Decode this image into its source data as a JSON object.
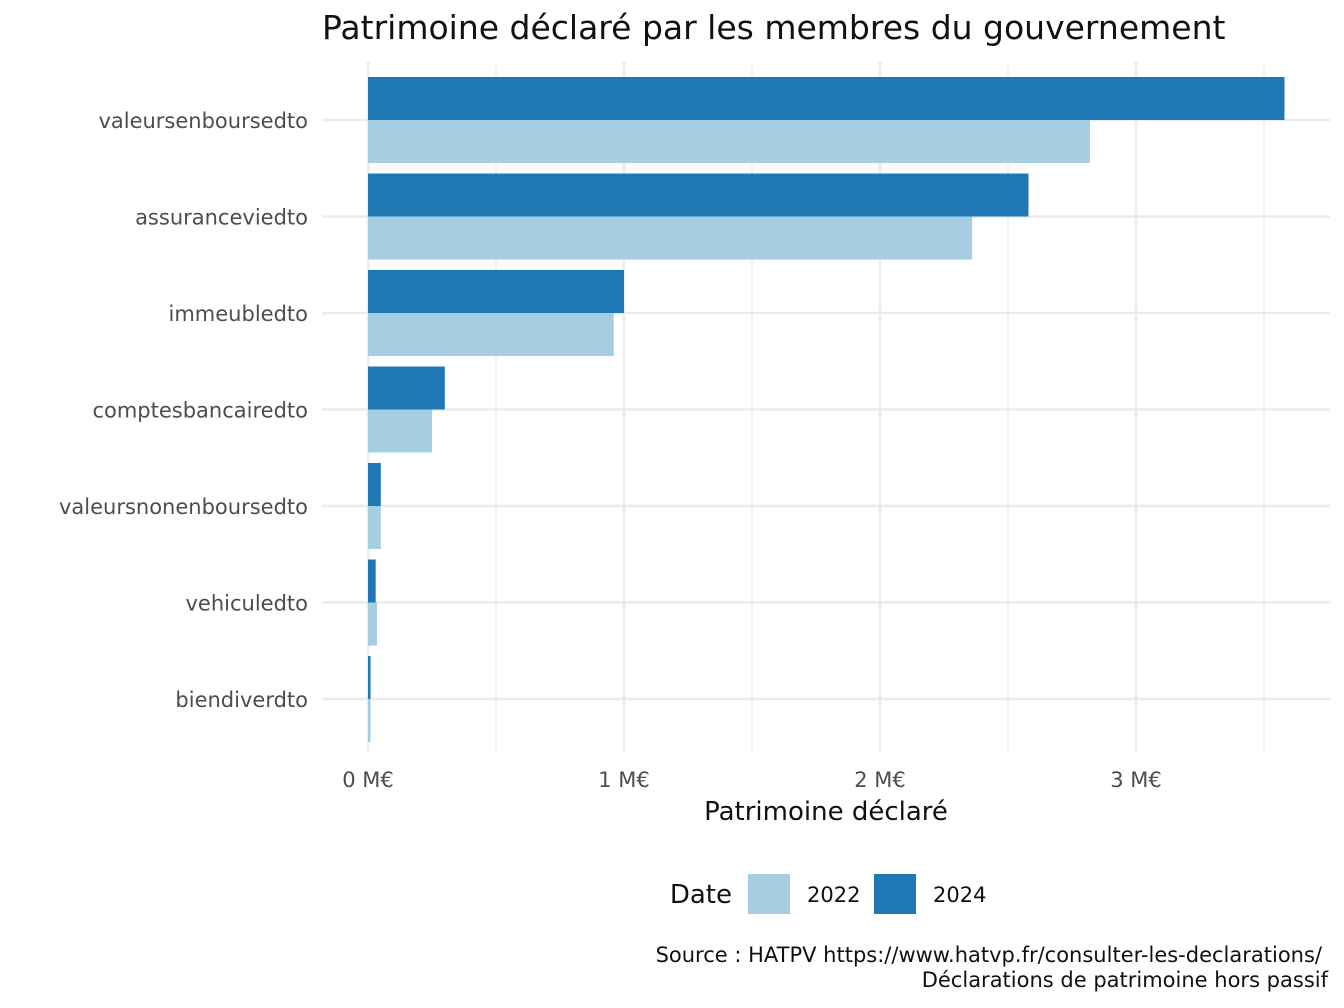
{
  "chart_data": {
    "type": "bar",
    "orientation": "horizontal",
    "title": "Patrimoine déclaré par les membres du gouvernement",
    "xlabel": "Patrimoine déclaré",
    "ylabel": "",
    "categories": [
      "valeursenboursedto",
      "assuranceviedto",
      "immeubledto",
      "comptesbancairedto",
      "valeursnonenboursedto",
      "vehiculedto",
      "biendiverdto"
    ],
    "series": [
      {
        "name": "2022",
        "color": "#a6cee3",
        "values": [
          2.82,
          2.36,
          0.96,
          0.25,
          0.05,
          0.035,
          0.01
        ]
      },
      {
        "name": "2024",
        "color": "#1f78b4",
        "values": [
          3.58,
          2.58,
          1.0,
          0.3,
          0.05,
          0.03,
          0.01
        ]
      }
    ],
    "x_unit": "M€",
    "xlim": [
      -0.18,
      3.75
    ],
    "x_ticks": [
      {
        "value": 0,
        "label": "0 M€"
      },
      {
        "value": 1,
        "label": "1 M€"
      },
      {
        "value": 2,
        "label": "2 M€"
      },
      {
        "value": 3,
        "label": "3 M€"
      }
    ],
    "x_minor_ticks": [
      0.5,
      1.5,
      2.5,
      3.5
    ],
    "grid": true,
    "legend": {
      "title": "Date",
      "position": "bottom",
      "entries": [
        "2022",
        "2024"
      ]
    },
    "caption": [
      "Source : HATPV https://www.hatvp.fr/consulter-les-declarations/",
      "Déclarations de patrimoine hors passif"
    ]
  }
}
